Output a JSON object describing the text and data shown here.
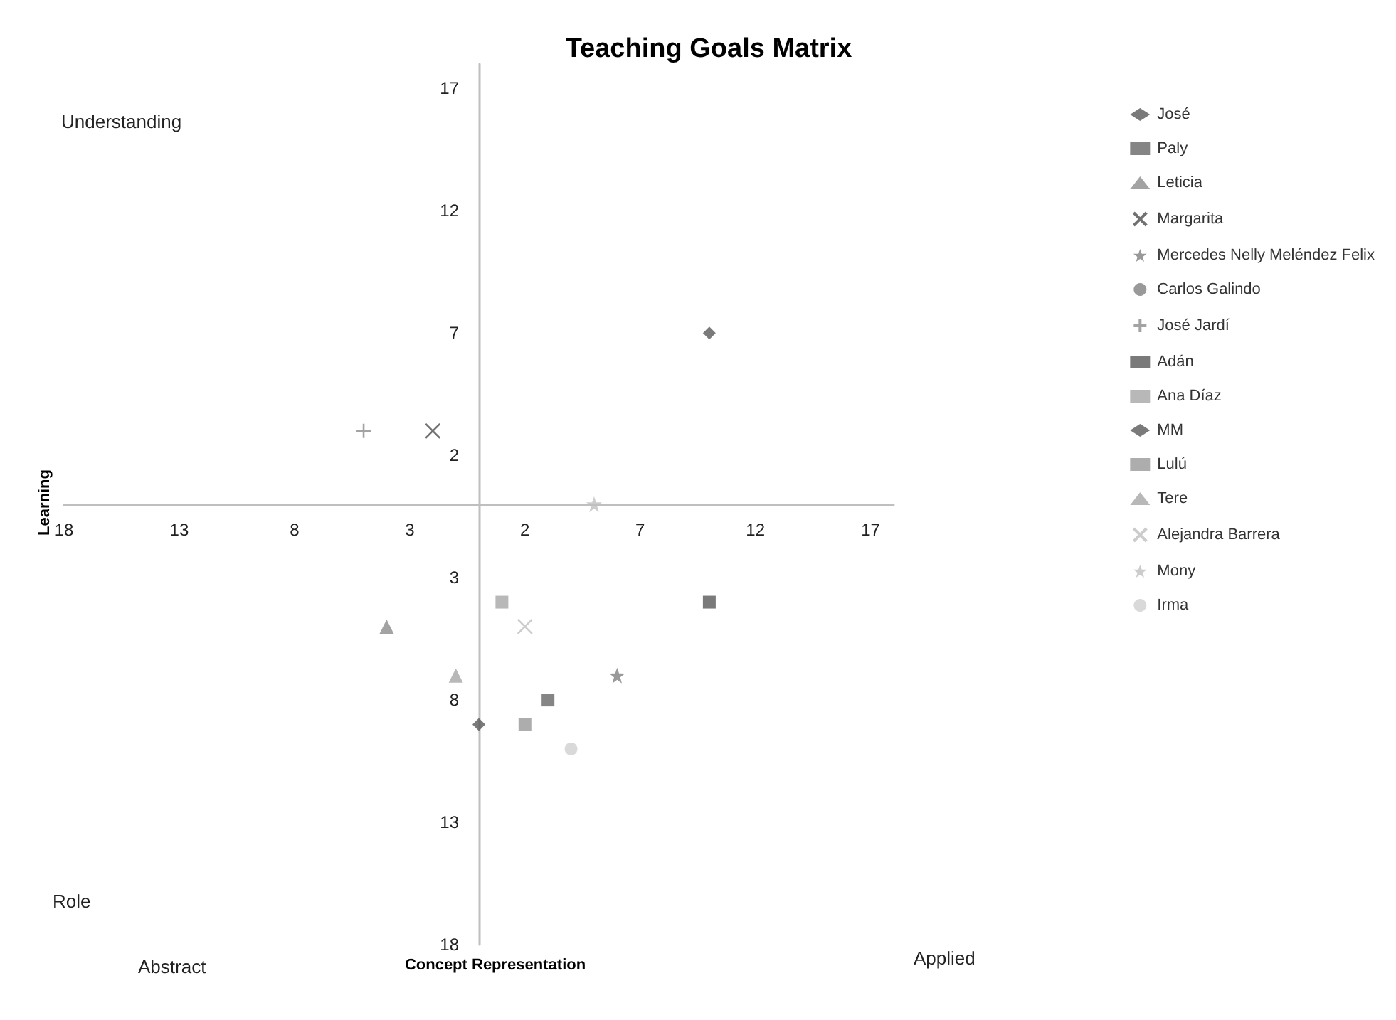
{
  "chart_data": {
    "type": "scatter",
    "title": "Teaching Goals Matrix",
    "xlabel": "Concept Representation",
    "ylabel": "Learning",
    "annotations": [
      "Understanding",
      "Role",
      "Abstract",
      "Applied"
    ],
    "xlim": [
      -18,
      18
    ],
    "ylim": [
      -18,
      18
    ],
    "xticks": [
      {
        "value": -18,
        "label": "18"
      },
      {
        "value": -13,
        "label": "13"
      },
      {
        "value": -8,
        "label": "8"
      },
      {
        "value": -3,
        "label": "3"
      },
      2,
      7,
      12,
      17
    ],
    "yticks": [
      {
        "value": -18,
        "label": "18"
      },
      {
        "value": -13,
        "label": "13"
      },
      {
        "value": -8,
        "label": "8"
      },
      {
        "value": -3,
        "label": "3"
      },
      2,
      7,
      12,
      17
    ],
    "grid": false,
    "legend": "right",
    "series": [
      {
        "name": "José",
        "color": "#595959",
        "marker": "diamond",
        "x": [
          10
        ],
        "values": [
          7
        ]
      },
      {
        "name": "Paly",
        "color": "#666666",
        "marker": "square",
        "x": [
          3
        ],
        "values": [
          -8
        ]
      },
      {
        "name": "Leticia",
        "color": "#8c8c8c",
        "marker": "triangle",
        "x": [
          -4
        ],
        "values": [
          -5
        ]
      },
      {
        "name": "Margarita",
        "color": "#4d4d4d",
        "marker": "cross",
        "x": [
          -2
        ],
        "values": [
          3
        ]
      },
      {
        "name": "Mercedes Nelly Meléndez Felix",
        "color": "#7f7f7f",
        "marker": "star",
        "x": [
          6
        ],
        "values": [
          -7
        ]
      },
      {
        "name": "Carlos Galindo",
        "color": "#808080",
        "marker": "circle",
        "x": [
          null
        ],
        "values": [
          null
        ]
      },
      {
        "name": "José Jardí",
        "color": "#8c8c8c",
        "marker": "plus",
        "x": [
          -5
        ],
        "values": [
          3
        ]
      },
      {
        "name": "Adán",
        "color": "#595959",
        "marker": "square",
        "x": [
          10
        ],
        "values": [
          -4
        ]
      },
      {
        "name": "Ana Díaz",
        "color": "#a6a6a6",
        "marker": "square",
        "x": [
          1
        ],
        "values": [
          -4
        ]
      },
      {
        "name": "MM",
        "color": "#595959",
        "marker": "diamond",
        "x": [
          0
        ],
        "values": [
          -9
        ]
      },
      {
        "name": "Lulú",
        "color": "#999999",
        "marker": "square",
        "x": [
          2
        ],
        "values": [
          -9
        ]
      },
      {
        "name": "Tere",
        "color": "#a6a6a6",
        "marker": "triangle",
        "x": [
          -1
        ],
        "values": [
          -7
        ]
      },
      {
        "name": "Alejandra Barrera",
        "color": "#bfbfbf",
        "marker": "cross",
        "x": [
          2
        ],
        "values": [
          -5
        ]
      },
      {
        "name": "Mony",
        "color": "#bfbfbf",
        "marker": "star",
        "x": [
          5
        ],
        "values": [
          0
        ]
      },
      {
        "name": "Irma",
        "color": "#d0d0d0",
        "marker": "circle",
        "x": [
          4
        ],
        "values": [
          -10
        ]
      }
    ]
  }
}
